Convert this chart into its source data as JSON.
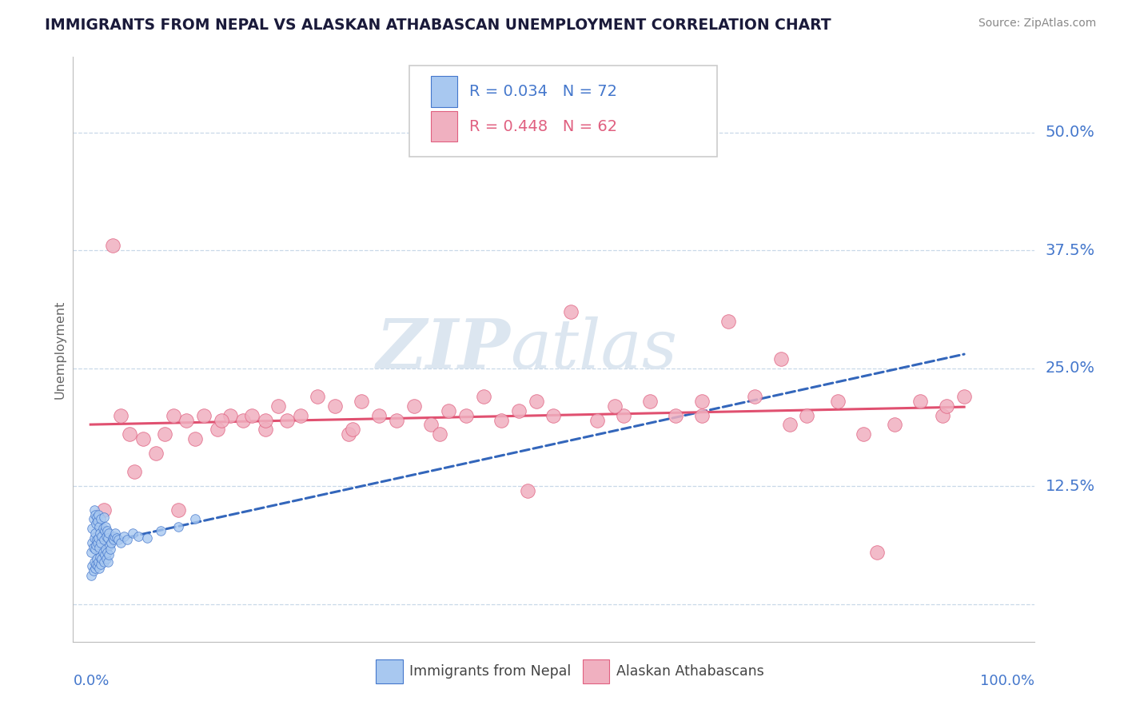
{
  "title": "IMMIGRANTS FROM NEPAL VS ALASKAN ATHABASCAN UNEMPLOYMENT CORRELATION CHART",
  "source": "Source: ZipAtlas.com",
  "ylabel": "Unemployment",
  "ytick_positions": [
    0.0,
    0.125,
    0.25,
    0.375,
    0.5
  ],
  "ytick_labels": [
    "",
    "12.5%",
    "25.0%",
    "37.5%",
    "50.0%"
  ],
  "xlim": [
    -0.02,
    1.08
  ],
  "ylim": [
    -0.04,
    0.58
  ],
  "legend_r1": "R = 0.034",
  "legend_n1": "N = 72",
  "legend_r2": "R = 0.448",
  "legend_n2": "N = 62",
  "color_blue_fill": "#a8c8f0",
  "color_blue_edge": "#4477cc",
  "color_pink_fill": "#f0b0c0",
  "color_pink_edge": "#e06080",
  "trendline_blue_color": "#3366bb",
  "trendline_pink_color": "#e05070",
  "grid_color": "#c8d8e8",
  "watermark_color": "#dce6f0",
  "nepal_x": [
    0.001,
    0.001,
    0.002,
    0.002,
    0.002,
    0.003,
    0.003,
    0.003,
    0.004,
    0.004,
    0.004,
    0.005,
    0.005,
    0.005,
    0.005,
    0.006,
    0.006,
    0.006,
    0.007,
    0.007,
    0.007,
    0.008,
    0.008,
    0.008,
    0.009,
    0.009,
    0.009,
    0.01,
    0.01,
    0.01,
    0.011,
    0.011,
    0.012,
    0.012,
    0.012,
    0.013,
    0.013,
    0.014,
    0.014,
    0.015,
    0.015,
    0.015,
    0.016,
    0.016,
    0.017,
    0.017,
    0.018,
    0.018,
    0.019,
    0.019,
    0.02,
    0.02,
    0.021,
    0.021,
    0.022,
    0.023,
    0.024,
    0.025,
    0.026,
    0.027,
    0.028,
    0.03,
    0.032,
    0.035,
    0.038,
    0.042,
    0.048,
    0.055,
    0.065,
    0.08,
    0.1,
    0.12
  ],
  "nepal_y": [
    0.03,
    0.055,
    0.04,
    0.065,
    0.08,
    0.035,
    0.06,
    0.09,
    0.045,
    0.07,
    0.1,
    0.038,
    0.058,
    0.075,
    0.095,
    0.042,
    0.062,
    0.085,
    0.048,
    0.068,
    0.092,
    0.04,
    0.065,
    0.088,
    0.045,
    0.07,
    0.095,
    0.038,
    0.06,
    0.082,
    0.05,
    0.075,
    0.042,
    0.065,
    0.09,
    0.048,
    0.072,
    0.055,
    0.08,
    0.045,
    0.068,
    0.092,
    0.052,
    0.078,
    0.058,
    0.082,
    0.048,
    0.072,
    0.055,
    0.078,
    0.045,
    0.07,
    0.052,
    0.075,
    0.062,
    0.058,
    0.065,
    0.07,
    0.068,
    0.072,
    0.075,
    0.07,
    0.068,
    0.065,
    0.072,
    0.068,
    0.075,
    0.072,
    0.07,
    0.078,
    0.082,
    0.09
  ],
  "athabascan_x": [
    0.015,
    0.025,
    0.035,
    0.045,
    0.06,
    0.075,
    0.085,
    0.095,
    0.11,
    0.12,
    0.13,
    0.145,
    0.16,
    0.175,
    0.185,
    0.2,
    0.215,
    0.225,
    0.24,
    0.26,
    0.28,
    0.295,
    0.31,
    0.33,
    0.35,
    0.37,
    0.39,
    0.41,
    0.43,
    0.45,
    0.47,
    0.49,
    0.51,
    0.53,
    0.55,
    0.58,
    0.61,
    0.64,
    0.67,
    0.7,
    0.73,
    0.76,
    0.79,
    0.82,
    0.855,
    0.885,
    0.92,
    0.95,
    0.975,
    1.0,
    0.05,
    0.1,
    0.15,
    0.2,
    0.3,
    0.4,
    0.5,
    0.6,
    0.7,
    0.8,
    0.9,
    0.98
  ],
  "athabascan_y": [
    0.1,
    0.38,
    0.2,
    0.18,
    0.175,
    0.16,
    0.18,
    0.2,
    0.195,
    0.175,
    0.2,
    0.185,
    0.2,
    0.195,
    0.2,
    0.185,
    0.21,
    0.195,
    0.2,
    0.22,
    0.21,
    0.18,
    0.215,
    0.2,
    0.195,
    0.21,
    0.19,
    0.205,
    0.2,
    0.22,
    0.195,
    0.205,
    0.215,
    0.2,
    0.31,
    0.195,
    0.2,
    0.215,
    0.2,
    0.215,
    0.3,
    0.22,
    0.26,
    0.2,
    0.215,
    0.18,
    0.19,
    0.215,
    0.2,
    0.22,
    0.14,
    0.1,
    0.195,
    0.195,
    0.185,
    0.18,
    0.12,
    0.21,
    0.2,
    0.19,
    0.055,
    0.21
  ]
}
